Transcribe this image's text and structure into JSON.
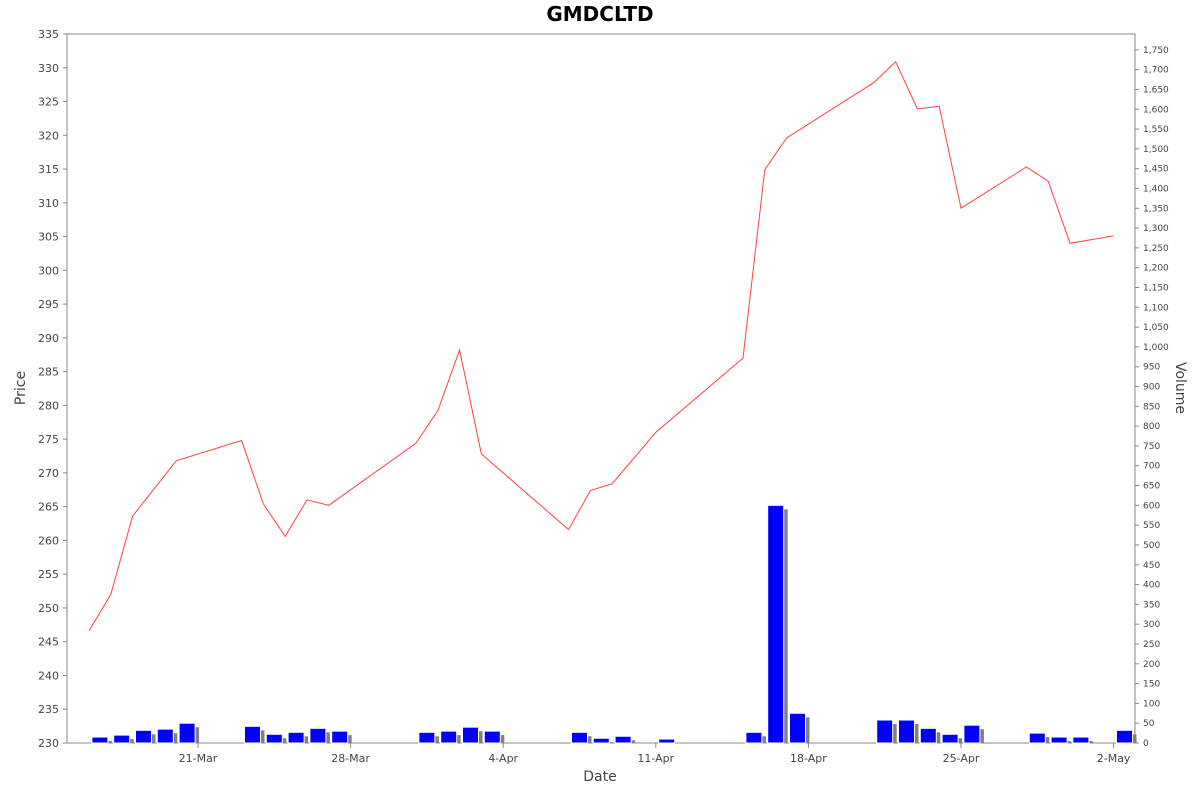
{
  "chart_data": {
    "type": "line",
    "title": "GMDCLTD",
    "xlabel": "Date",
    "ylabel": "Price",
    "y2label": "Volume",
    "x_ticks": [
      "21-Mar",
      "28-Mar",
      "4-Apr",
      "11-Apr",
      "18-Apr",
      "25-Apr",
      "2-May"
    ],
    "ylim": [
      230,
      335
    ],
    "y2lim": [
      0,
      1790
    ],
    "y_ticks": [
      230,
      235,
      240,
      245,
      250,
      255,
      260,
      265,
      270,
      275,
      280,
      285,
      290,
      295,
      300,
      305,
      310,
      315,
      320,
      325,
      330,
      335
    ],
    "y2_ticks": [
      0,
      50,
      100,
      150,
      200,
      250,
      300,
      350,
      400,
      450,
      500,
      550,
      600,
      650,
      700,
      750,
      800,
      850,
      900,
      950,
      1000,
      1050,
      1100,
      1150,
      1200,
      1250,
      1300,
      1350,
      1400,
      1450,
      1500,
      1550,
      1600,
      1650,
      1700,
      1750
    ],
    "grid": false,
    "price_color": "#ff4040",
    "volume_color": "#0000ff",
    "volume_shadow_color": "#808080",
    "price": {
      "x": [
        "2022-03-16",
        "2022-03-17",
        "2022-03-18",
        "2022-03-20",
        "2022-03-23",
        "2022-03-24",
        "2022-03-25",
        "2022-03-26",
        "2022-03-27",
        "2022-03-31",
        "2022-04-01",
        "2022-04-02",
        "2022-04-03",
        "2022-04-07",
        "2022-04-08",
        "2022-04-09",
        "2022-04-11",
        "2022-04-15",
        "2022-04-16",
        "2022-04-17",
        "2022-04-21",
        "2022-04-22",
        "2022-04-23",
        "2022-04-24",
        "2022-04-25",
        "2022-04-28",
        "2022-04-29",
        "2022-04-30",
        "2022-05-02"
      ],
      "y": [
        246.6,
        252.0,
        263.6,
        271.8,
        274.8,
        265.4,
        260.6,
        266.0,
        265.2,
        274.4,
        279.2,
        288.2,
        272.8,
        261.6,
        267.4,
        268.4,
        276.0,
        287.0,
        314.9,
        319.6,
        327.8,
        330.9,
        323.9,
        324.3,
        309.2,
        315.3,
        313.2,
        304.0,
        305.1
      ]
    },
    "volume": {
      "x": [
        "2022-03-16",
        "2022-03-17",
        "2022-03-18",
        "2022-03-19",
        "2022-03-20",
        "2022-03-23",
        "2022-03-24",
        "2022-03-25",
        "2022-03-26",
        "2022-03-27",
        "2022-03-31",
        "2022-04-01",
        "2022-04-02",
        "2022-04-03",
        "2022-04-07",
        "2022-04-08",
        "2022-04-09",
        "2022-04-11",
        "2022-04-15",
        "2022-04-16",
        "2022-04-17",
        "2022-04-21",
        "2022-04-22",
        "2022-04-23",
        "2022-04-24",
        "2022-04-25",
        "2022-04-28",
        "2022-04-29",
        "2022-04-30",
        "2022-05-02"
      ],
      "y": [
        15,
        20,
        32,
        35,
        50,
        42,
        22,
        27,
        37,
        30,
        27,
        30,
        40,
        30,
        27,
        12,
        17,
        10,
        27,
        600,
        75,
        58,
        58,
        37,
        22,
        45,
        25,
        15,
        15,
        32
      ]
    }
  }
}
